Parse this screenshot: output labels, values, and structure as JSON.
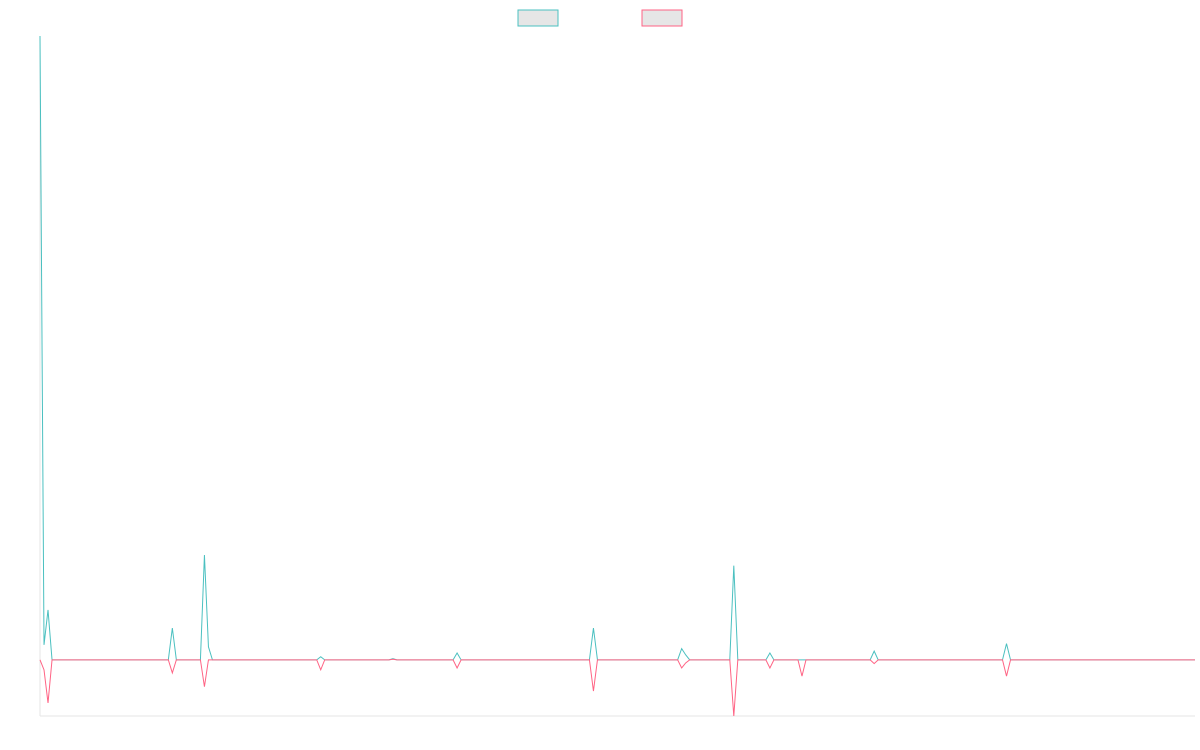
{
  "chart_data": {
    "type": "line",
    "x": [
      0,
      1,
      2,
      3,
      32,
      33,
      34,
      40,
      41,
      42,
      43,
      69,
      70,
      71,
      87,
      88,
      89,
      103,
      104,
      105,
      137,
      138,
      139,
      159,
      160,
      161,
      162,
      172,
      173,
      174,
      181,
      182,
      183,
      189,
      190,
      191,
      207,
      208,
      209,
      240,
      241,
      242,
      288
    ],
    "series": [
      {
        "color": "#4bc0c0",
        "values": [
          100,
          2.4,
          8.0,
          0,
          0,
          5.1,
          0,
          0,
          16.8,
          2.1,
          0,
          0,
          0.5,
          0,
          0,
          0.2,
          0,
          0,
          1.1,
          0,
          0,
          5.1,
          0,
          0,
          1.8,
          0.8,
          0,
          0,
          15.1,
          0,
          0,
          1.1,
          0,
          0,
          0,
          0,
          0,
          1.4,
          0,
          0,
          2.6,
          0,
          0
        ]
      },
      {
        "color": "#ff6384",
        "values": [
          0,
          -1.6,
          -6.9,
          0,
          0,
          -2.1,
          0,
          0,
          -4.3,
          0,
          0,
          0,
          -1.6,
          0,
          0,
          0.1,
          0,
          0,
          -1.3,
          0,
          0,
          -5.0,
          0,
          0,
          -1.3,
          -0.5,
          0,
          0,
          -9.0,
          0,
          0,
          -1.3,
          0,
          0,
          -2.6,
          0,
          0,
          -0.6,
          0,
          0,
          -2.6,
          0,
          0
        ]
      }
    ],
    "xlim": [
      0,
      288
    ],
    "ylim": [
      -9,
      100
    ],
    "legend": "top"
  }
}
